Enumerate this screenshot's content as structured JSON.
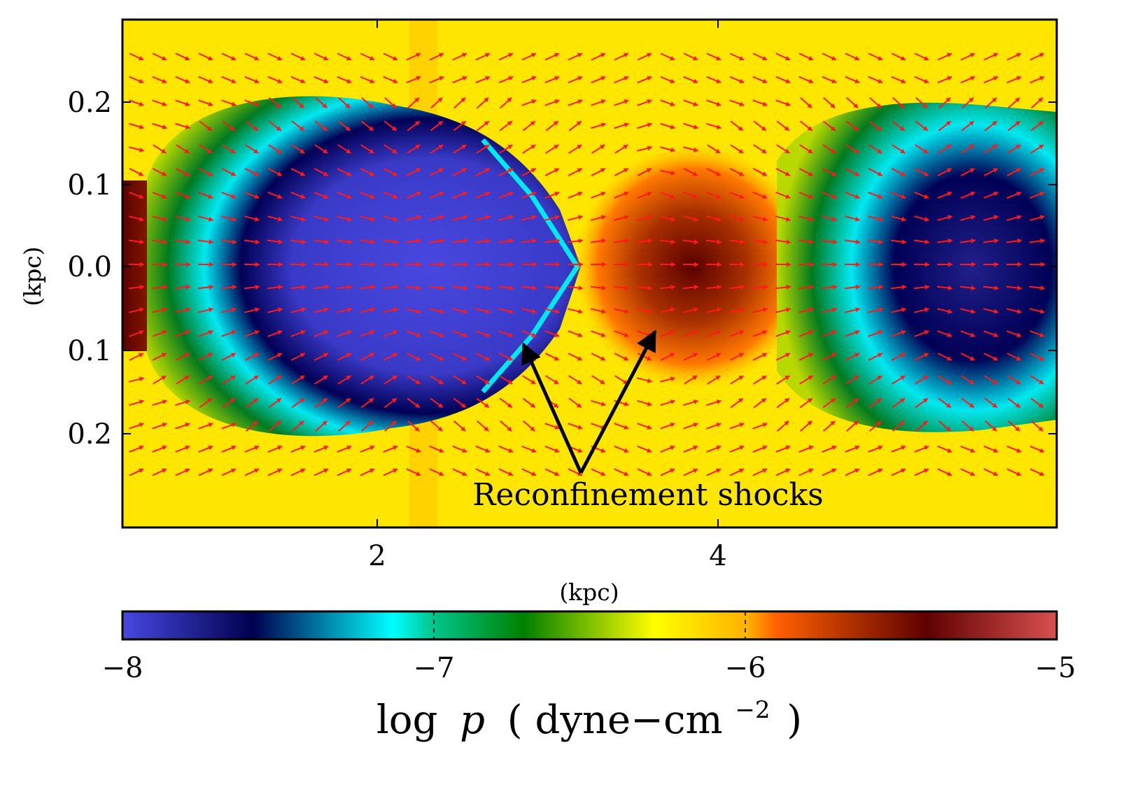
{
  "chart_data": {
    "type": "heatmap",
    "title": "",
    "xlabel": "(kpc)",
    "ylabel": "(kpc)",
    "x_ticks": [
      "2",
      "4"
    ],
    "y_ticks": [
      "0.2",
      "0.1",
      "0.0",
      "0.1",
      "0.2"
    ],
    "annotation": "Reconfinement shocks",
    "colorbar": {
      "label": "log p (dyne−cm−2)",
      "label_parts": {
        "log": "log",
        "var": "p",
        "open": "(",
        "unit": "dyne−cm",
        "exp": "−2",
        "close": ")"
      },
      "ticks": [
        "−8",
        "−7",
        "−6",
        "−5"
      ],
      "range": [
        -8,
        -5
      ],
      "colors": [
        "#4848e0",
        "#000050",
        "#00ffff",
        "#008000",
        "#ffff00",
        "#ff6000",
        "#600000",
        "#d85050"
      ]
    },
    "grid": false,
    "vector_color": "#ff1a1a"
  }
}
